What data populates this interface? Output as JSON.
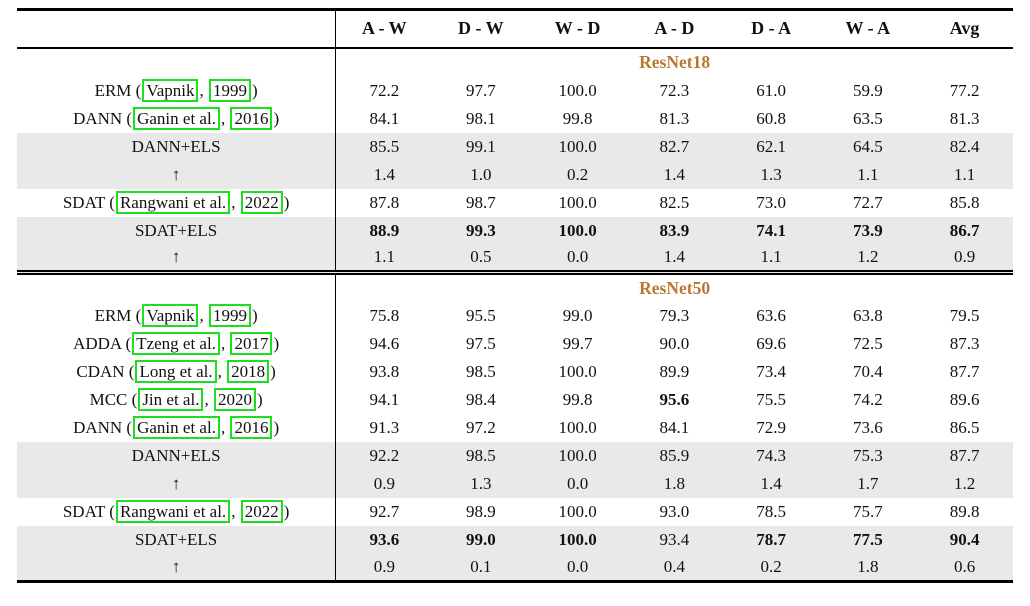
{
  "colors": {
    "accent": "#b9782f",
    "highlight": "#e9e9e9",
    "annotation": "#1fdd1f",
    "rule": "#000000"
  },
  "columns": [
    "",
    "A - W",
    "D - W",
    "W - D",
    "A - D",
    "D - A",
    "W - A",
    "Avg"
  ],
  "chart_data": {
    "type": "table",
    "title": "Domain adaptation accuracy on Office-31 tasks",
    "columns": [
      "A - W",
      "D - W",
      "W - D",
      "A - D",
      "D - A",
      "W - A",
      "Avg"
    ]
  },
  "sections": [
    {
      "title": "ResNet18",
      "rows": [
        {
          "method": [
            [
              "ERM (",
              false
            ],
            [
              "Vapnik",
              true
            ],
            [
              ", ",
              false
            ],
            [
              "1999",
              true
            ],
            [
              ")",
              false
            ]
          ],
          "highlight": false,
          "values": [
            [
              "72.2",
              false
            ],
            [
              "97.7",
              false
            ],
            [
              "100.0",
              false
            ],
            [
              "72.3",
              false
            ],
            [
              "61.0",
              false
            ],
            [
              "59.9",
              false
            ],
            [
              "77.2",
              false
            ]
          ]
        },
        {
          "method": [
            [
              "DANN (",
              false
            ],
            [
              "Ganin et al.",
              true
            ],
            [
              ", ",
              false
            ],
            [
              "2016",
              true
            ],
            [
              ")",
              false
            ]
          ],
          "highlight": false,
          "values": [
            [
              "84.1",
              false
            ],
            [
              "98.1",
              false
            ],
            [
              "99.8",
              false
            ],
            [
              "81.3",
              false
            ],
            [
              "60.8",
              false
            ],
            [
              "63.5",
              false
            ],
            [
              "81.3",
              false
            ]
          ]
        },
        {
          "method": [
            [
              "DANN+ELS",
              false
            ]
          ],
          "highlight": true,
          "values": [
            [
              "85.5",
              false
            ],
            [
              "99.1",
              false
            ],
            [
              "100.0",
              false
            ],
            [
              "82.7",
              false
            ],
            [
              "62.1",
              false
            ],
            [
              "64.5",
              false
            ],
            [
              "82.4",
              false
            ]
          ]
        },
        {
          "method": [
            [
              "↑",
              false
            ]
          ],
          "highlight": true,
          "values": [
            [
              "1.4",
              false
            ],
            [
              "1.0",
              false
            ],
            [
              "0.2",
              false
            ],
            [
              "1.4",
              false
            ],
            [
              "1.3",
              false
            ],
            [
              "1.1",
              false
            ],
            [
              "1.1",
              false
            ]
          ]
        },
        {
          "method": [
            [
              "SDAT (",
              false
            ],
            [
              "Rangwani et al.",
              true
            ],
            [
              ", ",
              false
            ],
            [
              "2022",
              true
            ],
            [
              ")",
              false
            ]
          ],
          "highlight": false,
          "values": [
            [
              "87.8",
              false
            ],
            [
              "98.7",
              false
            ],
            [
              "100.0",
              false
            ],
            [
              "82.5",
              false
            ],
            [
              "73.0",
              false
            ],
            [
              "72.7",
              false
            ],
            [
              "85.8",
              false
            ]
          ]
        },
        {
          "method": [
            [
              "SDAT+ELS",
              false
            ]
          ],
          "highlight": true,
          "values": [
            [
              "88.9",
              true
            ],
            [
              "99.3",
              true
            ],
            [
              "100.0",
              true
            ],
            [
              "83.9",
              true
            ],
            [
              "74.1",
              true
            ],
            [
              "73.9",
              true
            ],
            [
              "86.7",
              true
            ]
          ]
        },
        {
          "method": [
            [
              "↑",
              false
            ]
          ],
          "highlight": true,
          "values": [
            [
              "1.1",
              false
            ],
            [
              "0.5",
              false
            ],
            [
              "0.0",
              false
            ],
            [
              "1.4",
              false
            ],
            [
              "1.1",
              false
            ],
            [
              "1.2",
              false
            ],
            [
              "0.9",
              false
            ]
          ]
        }
      ]
    },
    {
      "title": "ResNet50",
      "rows": [
        {
          "method": [
            [
              "ERM (",
              false
            ],
            [
              "Vapnik",
              true
            ],
            [
              ", ",
              false
            ],
            [
              "1999",
              true
            ],
            [
              ")",
              false
            ]
          ],
          "highlight": false,
          "values": [
            [
              "75.8",
              false
            ],
            [
              "95.5",
              false
            ],
            [
              "99.0",
              false
            ],
            [
              "79.3",
              false
            ],
            [
              "63.6",
              false
            ],
            [
              "63.8",
              false
            ],
            [
              "79.5",
              false
            ]
          ]
        },
        {
          "method": [
            [
              "ADDA (",
              false
            ],
            [
              "Tzeng et al.",
              true
            ],
            [
              ", ",
              false
            ],
            [
              "2017",
              true
            ],
            [
              ")",
              false
            ]
          ],
          "highlight": false,
          "values": [
            [
              "94.6",
              false
            ],
            [
              "97.5",
              false
            ],
            [
              "99.7",
              false
            ],
            [
              "90.0",
              false
            ],
            [
              "69.6",
              false
            ],
            [
              "72.5",
              false
            ],
            [
              "87.3",
              false
            ]
          ]
        },
        {
          "method": [
            [
              "CDAN (",
              false
            ],
            [
              "Long et al.",
              true
            ],
            [
              ", ",
              false
            ],
            [
              "2018",
              true
            ],
            [
              ")",
              false
            ]
          ],
          "highlight": false,
          "values": [
            [
              "93.8",
              false
            ],
            [
              "98.5",
              false
            ],
            [
              "100.0",
              false
            ],
            [
              "89.9",
              false
            ],
            [
              "73.4",
              false
            ],
            [
              "70.4",
              false
            ],
            [
              "87.7",
              false
            ]
          ]
        },
        {
          "method": [
            [
              "MCC (",
              false
            ],
            [
              "Jin et al.",
              true
            ],
            [
              ", ",
              false
            ],
            [
              "2020",
              true
            ],
            [
              ")",
              false
            ]
          ],
          "highlight": false,
          "values": [
            [
              "94.1",
              false
            ],
            [
              "98.4",
              false
            ],
            [
              "99.8",
              false
            ],
            [
              "95.6",
              true
            ],
            [
              "75.5",
              false
            ],
            [
              "74.2",
              false
            ],
            [
              "89.6",
              false
            ]
          ]
        },
        {
          "method": [
            [
              "DANN (",
              false
            ],
            [
              "Ganin et al.",
              true
            ],
            [
              ", ",
              false
            ],
            [
              "2016",
              true
            ],
            [
              ")",
              false
            ]
          ],
          "highlight": false,
          "values": [
            [
              "91.3",
              false
            ],
            [
              "97.2",
              false
            ],
            [
              "100.0",
              false
            ],
            [
              "84.1",
              false
            ],
            [
              "72.9",
              false
            ],
            [
              "73.6",
              false
            ],
            [
              "86.5",
              false
            ]
          ]
        },
        {
          "method": [
            [
              "DANN+ELS",
              false
            ]
          ],
          "highlight": true,
          "values": [
            [
              "92.2",
              false
            ],
            [
              "98.5",
              false
            ],
            [
              "100.0",
              false
            ],
            [
              "85.9",
              false
            ],
            [
              "74.3",
              false
            ],
            [
              "75.3",
              false
            ],
            [
              "87.7",
              false
            ]
          ]
        },
        {
          "method": [
            [
              "↑",
              false
            ]
          ],
          "highlight": true,
          "values": [
            [
              "0.9",
              false
            ],
            [
              "1.3",
              false
            ],
            [
              "0.0",
              false
            ],
            [
              "1.8",
              false
            ],
            [
              "1.4",
              false
            ],
            [
              "1.7",
              false
            ],
            [
              "1.2",
              false
            ]
          ]
        },
        {
          "method": [
            [
              "SDAT (",
              false
            ],
            [
              "Rangwani et al.",
              true
            ],
            [
              ", ",
              false
            ],
            [
              "2022",
              true
            ],
            [
              ")",
              false
            ]
          ],
          "highlight": false,
          "values": [
            [
              "92.7",
              false
            ],
            [
              "98.9",
              false
            ],
            [
              "100.0",
              false
            ],
            [
              "93.0",
              false
            ],
            [
              "78.5",
              false
            ],
            [
              "75.7",
              false
            ],
            [
              "89.8",
              false
            ]
          ]
        },
        {
          "method": [
            [
              "SDAT+ELS",
              false
            ]
          ],
          "highlight": true,
          "values": [
            [
              "93.6",
              true
            ],
            [
              "99.0",
              true
            ],
            [
              "100.0",
              true
            ],
            [
              "93.4",
              false
            ],
            [
              "78.7",
              true
            ],
            [
              "77.5",
              true
            ],
            [
              "90.4",
              true
            ]
          ]
        },
        {
          "method": [
            [
              "↑",
              false
            ]
          ],
          "highlight": true,
          "values": [
            [
              "0.9",
              false
            ],
            [
              "0.1",
              false
            ],
            [
              "0.0",
              false
            ],
            [
              "0.4",
              false
            ],
            [
              "0.2",
              false
            ],
            [
              "1.8",
              false
            ],
            [
              "0.6",
              false
            ]
          ]
        }
      ]
    }
  ]
}
